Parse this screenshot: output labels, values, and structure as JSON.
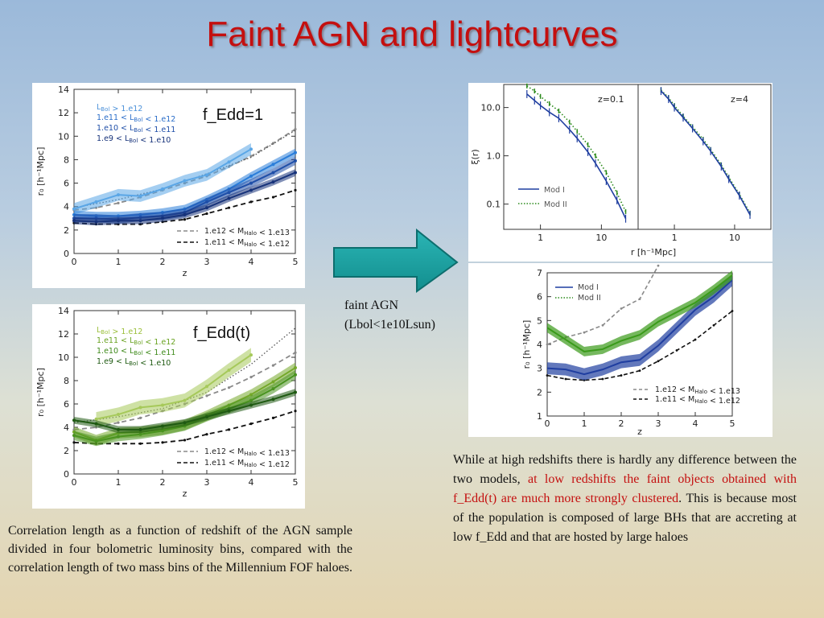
{
  "title": "Faint AGN and lightcurves",
  "arrow": {
    "label_line1": "faint AGN",
    "label_line2": "(Lbol<1e10Lsun)"
  },
  "caption_left": "Correlation length as a function of redshift of the AGN sample divided in four bolometric luminosity bins, compared with the correlation length of two mass bins of the Millennium FOF haloes.",
  "caption_right": {
    "part1": "While at high redshifts there is hardly any difference between the two models, ",
    "highlight": "at low redshifts the faint objects obtained with f_Edd(t) are much more strongly clustered",
    "part2": ". This is because most of the population is composed of large BHs that are accreting at low f_Edd and that are hosted by large haloes"
  },
  "colors": {
    "title": "#c40f0f",
    "arrow": "#1aa3a3",
    "mod1": "#1f3ea0",
    "mod2": "#2a8a1a"
  },
  "chart_data": [
    {
      "type": "line",
      "panel_label": "f_Edd=1",
      "xlabel": "z",
      "ylabel": "r₀ [h⁻¹Mpc]",
      "xlim": [
        0,
        5
      ],
      "ylim": [
        0,
        14
      ],
      "xticks": [
        0,
        1,
        2,
        3,
        4,
        5
      ],
      "yticks": [
        0,
        2,
        4,
        6,
        8,
        10,
        12,
        14
      ],
      "legend_lum": [
        {
          "text": "L_Bol > 1.e12",
          "color": "#4a90d9"
        },
        {
          "text": "1.e11 < L_Bol < 1.e12",
          "color": "#2a6dc9"
        },
        {
          "text": "1.e10 < L_Bol < 1.e11",
          "color": "#1f4fa8"
        },
        {
          "text": "1.e9 < L_Bol < 1.e10",
          "color": "#17337a"
        }
      ],
      "legend_halo": [
        {
          "text": "1.e12 < M_Halo < 1.e13",
          "dash": "grey"
        },
        {
          "text": "1.e11 < M_Halo < 1.e12",
          "dash": "black"
        }
      ],
      "series": [
        {
          "color": "#5aa6e6",
          "band": 0.5,
          "x": [
            0,
            0.5,
            1,
            1.5,
            2,
            2.5,
            3,
            3.5,
            4
          ],
          "y": [
            3.8,
            4.4,
            5.0,
            4.9,
            5.5,
            6.2,
            6.7,
            7.8,
            8.9
          ]
        },
        {
          "color": "#2a7dd9",
          "band": 0.35,
          "x": [
            0,
            0.5,
            1,
            1.5,
            2,
            2.5,
            3,
            3.5,
            4,
            4.5,
            5
          ],
          "y": [
            3.3,
            3.2,
            3.2,
            3.3,
            3.5,
            3.8,
            4.6,
            5.5,
            6.6,
            7.6,
            8.6
          ]
        },
        {
          "color": "#1f4fa8",
          "band": 0.35,
          "x": [
            0,
            0.5,
            1,
            1.5,
            2,
            2.5,
            3,
            3.5,
            4,
            4.5,
            5
          ],
          "y": [
            3.0,
            3.0,
            2.9,
            3.1,
            3.2,
            3.5,
            4.4,
            5.2,
            6.0,
            6.9,
            7.9
          ]
        },
        {
          "color": "#17337a",
          "band": 0.3,
          "x": [
            0,
            0.5,
            1,
            1.5,
            2,
            2.5,
            3,
            3.5,
            4,
            4.5,
            5
          ],
          "y": [
            2.8,
            2.7,
            2.8,
            2.8,
            3.0,
            3.3,
            3.9,
            4.7,
            5.4,
            6.1,
            6.9
          ]
        }
      ],
      "halo_lines": [
        {
          "style": "grey-dash",
          "x": [
            0,
            0.5,
            1,
            1.5,
            2,
            2.5,
            3,
            3.5,
            4,
            4.5,
            5
          ],
          "y": [
            3.7,
            3.9,
            4.3,
            4.8,
            5.4,
            6.0,
            6.6,
            7.4,
            8.3,
            9.4,
            10.6
          ]
        },
        {
          "style": "black-dash",
          "x": [
            0,
            0.5,
            1,
            1.5,
            2,
            2.5,
            3,
            3.5,
            4,
            4.5,
            5
          ],
          "y": [
            2.6,
            2.5,
            2.5,
            2.5,
            2.7,
            2.9,
            3.4,
            3.9,
            4.4,
            4.8,
            5.4
          ]
        },
        {
          "style": "dotted",
          "x": [
            0,
            1,
            2,
            3,
            4,
            5
          ],
          "y": [
            3.9,
            4.6,
            5.5,
            6.8,
            8.2,
            10.5
          ]
        }
      ]
    },
    {
      "type": "line",
      "panel_label": "f_Edd(t)",
      "xlabel": "z",
      "ylabel": "r₀ [h⁻¹Mpc]",
      "xlim": [
        0,
        5
      ],
      "ylim": [
        0,
        14
      ],
      "xticks": [
        0,
        1,
        2,
        3,
        4,
        5
      ],
      "yticks": [
        0,
        2,
        4,
        6,
        8,
        10,
        12,
        14
      ],
      "legend_lum": [
        {
          "text": "L_Bol > 1.e12",
          "color": "#9bbf3a"
        },
        {
          "text": "1.e11 < L_Bol < 1.e12",
          "color": "#6aa321"
        },
        {
          "text": "1.e10 < L_Bol < 1.e11",
          "color": "#3e8a1a"
        },
        {
          "text": "1.e9 < L_Bol < 1.e10",
          "color": "#1f5a12"
        }
      ],
      "legend_halo": [
        {
          "text": "1.e12 < M_Halo < 1.e13",
          "dash": "grey"
        },
        {
          "text": "1.e11 < M_Halo < 1.e12",
          "dash": "black"
        }
      ],
      "series": [
        {
          "color": "#a6c95a",
          "band": 0.6,
          "x": [
            0.5,
            1,
            1.5,
            2,
            2.5,
            3,
            3.5,
            4
          ],
          "y": [
            4.7,
            5.1,
            5.7,
            5.9,
            6.3,
            7.5,
            8.9,
            10.2
          ]
        },
        {
          "color": "#74a82a",
          "band": 0.45,
          "x": [
            0,
            0.5,
            1,
            1.5,
            2,
            2.5,
            3,
            3.5,
            4,
            4.5,
            5
          ],
          "y": [
            3.6,
            2.9,
            3.5,
            3.6,
            3.8,
            4.2,
            5.0,
            5.9,
            6.8,
            7.9,
            9.1
          ]
        },
        {
          "color": "#4a9320",
          "band": 0.4,
          "x": [
            0,
            0.5,
            1,
            1.5,
            2,
            2.5,
            3,
            3.5,
            4,
            4.5,
            5
          ],
          "y": [
            3.3,
            2.8,
            3.2,
            3.4,
            3.7,
            4.1,
            4.9,
            5.6,
            6.3,
            7.3,
            8.5
          ]
        },
        {
          "color": "#1f5a12",
          "band": 0.3,
          "x": [
            0,
            0.5,
            1,
            1.5,
            2,
            2.5,
            3,
            3.5,
            4,
            4.5,
            5
          ],
          "y": [
            4.6,
            4.3,
            3.8,
            3.8,
            4.1,
            4.4,
            4.9,
            5.4,
            5.9,
            6.4,
            7.0
          ]
        }
      ],
      "halo_lines": [
        {
          "style": "grey-dash",
          "x": [
            0,
            0.5,
            1,
            1.5,
            2,
            2.5,
            3,
            3.5,
            4,
            4.5,
            5
          ],
          "y": [
            3.8,
            4.0,
            4.4,
            4.8,
            5.4,
            6.0,
            6.7,
            7.4,
            8.3,
            9.3,
            10.4
          ]
        },
        {
          "style": "black-dash",
          "x": [
            0,
            0.5,
            1,
            1.5,
            2,
            2.5,
            3,
            3.5,
            4,
            4.5,
            5
          ],
          "y": [
            2.7,
            2.6,
            2.6,
            2.6,
            2.7,
            2.9,
            3.4,
            3.8,
            4.3,
            4.8,
            5.4
          ]
        },
        {
          "style": "dotted",
          "x": [
            0,
            1,
            2,
            3,
            4,
            5
          ],
          "y": [
            4.4,
            4.9,
            5.6,
            7.0,
            9.4,
            12.5
          ]
        }
      ]
    },
    {
      "type": "line",
      "subtype": "log-log",
      "panels": [
        {
          "label": "z=0.1",
          "mod1": {
            "x": [
              0.4,
              0.6,
              0.8,
              1.0,
              1.4,
              2,
              3,
              4,
              6,
              8,
              12,
              18,
              25
            ],
            "y": [
              32,
              19,
              14,
              11,
              8,
              6,
              3.5,
              2.3,
              1.2,
              0.7,
              0.3,
              0.12,
              0.05
            ]
          },
          "mod2": {
            "x": [
              0.4,
              0.6,
              0.8,
              1.0,
              1.4,
              2,
              3,
              4,
              6,
              8,
              12,
              18,
              25
            ],
            "y": [
              42,
              28,
              22,
              17,
              12,
              8.5,
              5,
              3.2,
              1.7,
              1.0,
              0.45,
              0.17,
              0.07
            ]
          }
        },
        {
          "label": "z=4",
          "mod1": {
            "x": [
              0.4,
              0.6,
              0.8,
              1.0,
              1.4,
              2,
              3,
              4,
              6,
              8,
              12,
              18,
              25
            ],
            "y": [
              38,
              22,
              15,
              10,
              6.2,
              3.7,
              2.0,
              1.25,
              0.6,
              0.33,
              0.15,
              0.06,
              0.025
            ]
          },
          "mod2": {
            "x": [
              0.4,
              0.6,
              0.8,
              1.0,
              1.4,
              2,
              3,
              4,
              6,
              8,
              12,
              18,
              25
            ],
            "y": [
              40,
              23,
              16,
              11,
              6.6,
              4.0,
              2.2,
              1.35,
              0.65,
              0.36,
              0.16,
              0.065,
              0.028
            ]
          }
        }
      ],
      "xlabel": "r [h⁻¹Mpc]",
      "ylabel": "ξ(r)",
      "xticks": [
        "1",
        "10"
      ],
      "yticks": [
        "10.0",
        "1.0",
        "0.1"
      ],
      "legend": [
        "Mod I",
        "Mod II"
      ]
    },
    {
      "type": "line",
      "xlabel": "z",
      "ylabel": "r₀ [h⁻¹Mpc]",
      "xlim": [
        0,
        5
      ],
      "ylim": [
        1,
        7
      ],
      "xticks": [
        0,
        1,
        2,
        3,
        4,
        5
      ],
      "yticks": [
        1,
        2,
        3,
        4,
        5,
        6,
        7
      ],
      "legend": [
        "Mod I",
        "Mod II"
      ],
      "legend_halo": [
        {
          "text": "1.e12 < M_Halo < 1.e13",
          "dash": "grey"
        },
        {
          "text": "1.e11 < M_Halo < 1.e12",
          "dash": "black"
        }
      ],
      "series": [
        {
          "name": "Mod I",
          "color": "#1f3ea0",
          "band": 0.25,
          "x": [
            0,
            0.5,
            1,
            1.5,
            2,
            2.5,
            3,
            3.5,
            4,
            4.5,
            5
          ],
          "y": [
            3.0,
            2.95,
            2.75,
            2.95,
            3.25,
            3.35,
            3.95,
            4.7,
            5.45,
            6.0,
            6.7
          ]
        },
        {
          "name": "Mod II",
          "color": "#3a9a1a",
          "band": 0.2,
          "x": [
            0,
            0.5,
            1,
            1.5,
            2,
            2.5,
            3,
            3.5,
            4,
            4.5,
            5
          ],
          "y": [
            4.7,
            4.2,
            3.7,
            3.8,
            4.15,
            4.4,
            4.95,
            5.35,
            5.75,
            6.3,
            6.9
          ]
        }
      ],
      "halo_lines": [
        {
          "style": "grey-dash",
          "x": [
            0,
            0.5,
            1,
            1.5,
            2,
            2.5,
            3
          ],
          "y": [
            4.0,
            4.3,
            4.5,
            4.8,
            5.5,
            5.9,
            7.3
          ]
        },
        {
          "style": "black-dash",
          "x": [
            0,
            0.5,
            1,
            1.5,
            2,
            2.5,
            3,
            3.5,
            4,
            4.5,
            5
          ],
          "y": [
            2.7,
            2.55,
            2.5,
            2.55,
            2.7,
            2.9,
            3.3,
            3.75,
            4.2,
            4.8,
            5.4
          ]
        }
      ]
    }
  ]
}
